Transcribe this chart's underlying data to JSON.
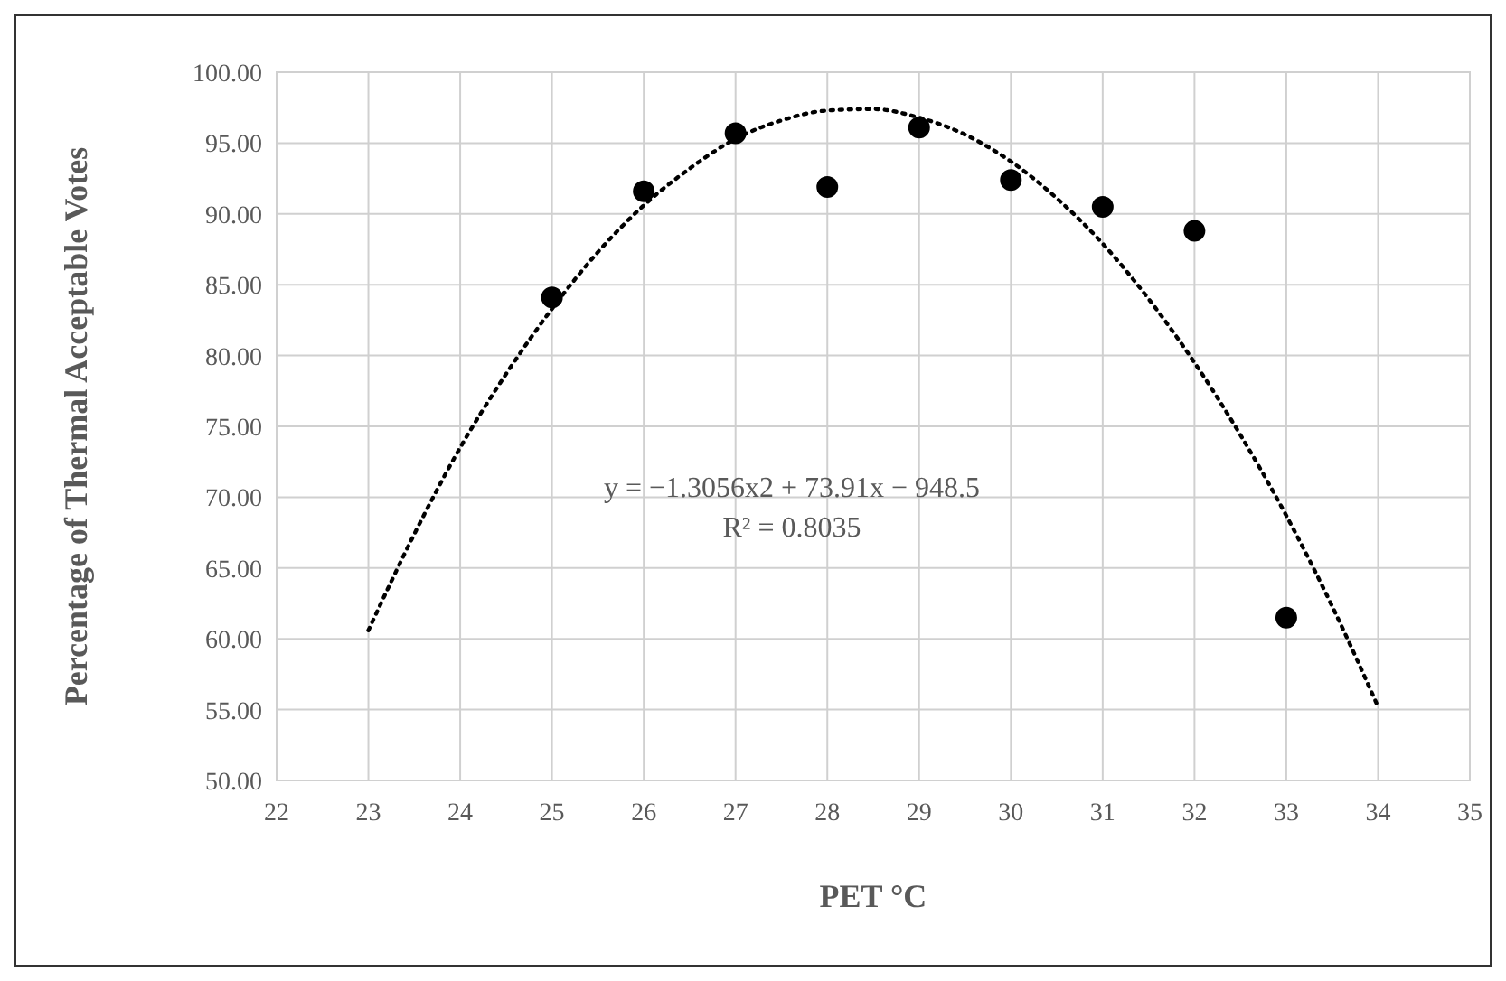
{
  "chart_data": {
    "type": "scatter",
    "xlabel": "PET °C",
    "ylabel": "Percentage of Thermal Acceptable Votes",
    "xlim": [
      22,
      35
    ],
    "xticks": [
      22,
      23,
      24,
      25,
      26,
      27,
      28,
      29,
      30,
      31,
      32,
      33,
      34,
      35
    ],
    "ylim": [
      50,
      100
    ],
    "yticks": [
      {
        "value": 50,
        "label": "50.00"
      },
      {
        "value": 55,
        "label": "55.00"
      },
      {
        "value": 60,
        "label": "60.00"
      },
      {
        "value": 65,
        "label": "65.00"
      },
      {
        "value": 70,
        "label": "70.00"
      },
      {
        "value": 75,
        "label": "75.00"
      },
      {
        "value": 80,
        "label": "80.00"
      },
      {
        "value": 85,
        "label": "85.00"
      },
      {
        "value": 90,
        "label": "90.00"
      },
      {
        "value": 95,
        "label": "95.00"
      },
      {
        "value": 100,
        "label": "100.00"
      }
    ],
    "grid": true,
    "series": [
      {
        "color": "#000000",
        "marker": "circle",
        "x": [
          25,
          26,
          27,
          28,
          29,
          30,
          31,
          32,
          33
        ],
        "values": [
          84.1,
          91.6,
          95.7,
          91.9,
          96.1,
          92.4,
          90.5,
          88.8,
          61.5
        ]
      },
      {
        "type": "line",
        "color": "#000000",
        "line_style": "dotted",
        "x": [
          23,
          23.5,
          24,
          24.5,
          25,
          25.5,
          26,
          26.5,
          27,
          27.5,
          28,
          28.5,
          29,
          29.5,
          30,
          30.5,
          31,
          31.5,
          32,
          32.5,
          33,
          33.5,
          34
        ],
        "values": [
          60.6,
          67.4,
          73.5,
          78.7,
          83.3,
          87.3,
          90.6,
          93.2,
          95.3,
          96.6,
          97.3,
          97.4,
          96.8,
          95.6,
          93.7,
          91.1,
          87.9,
          84.0,
          79.5,
          74.4,
          68.7,
          62.3,
          55.2
        ]
      }
    ],
    "annotations": [
      "y = −1.3056x2 + 73.91x − 948.5",
      "R² = 0.8035"
    ]
  }
}
